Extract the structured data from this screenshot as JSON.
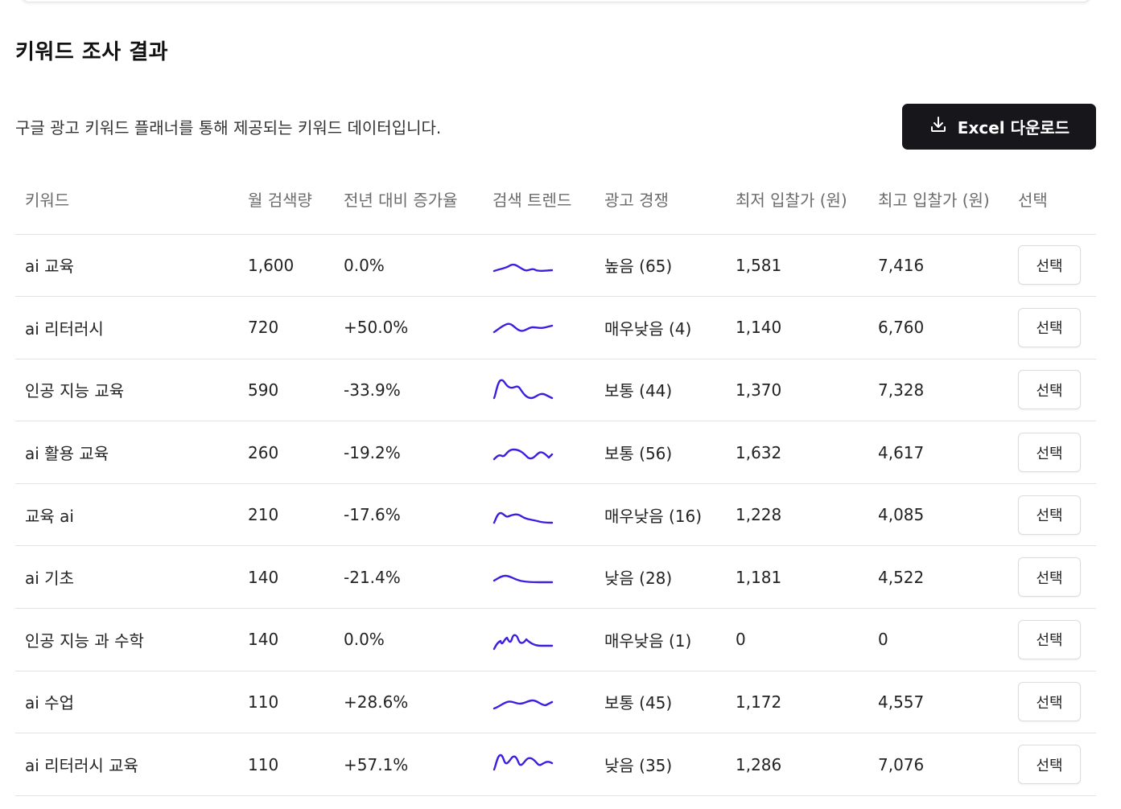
{
  "section": {
    "title": "키워드 조사 결과",
    "subtitle": "구글 광고 키워드 플래너를 통해 제공되는 키워드 데이터입니다.",
    "excel_button": "Excel 다운로드"
  },
  "table": {
    "headers": {
      "keyword": "키워드",
      "volume": "월 검색량",
      "yoy": "전년 대비 증가율",
      "trend": "검색 트렌드",
      "competition": "광고 경쟁",
      "low_bid": "최저 입찰가 (원)",
      "high_bid": "최고 입찰가 (원)",
      "select": "선택"
    },
    "rows": [
      {
        "keyword": "ai 교육",
        "volume": "1,600",
        "yoy": "0.0%",
        "trend_icon": "sparkline",
        "competition": "높음 (65)",
        "low_bid": "1,581",
        "high_bid": "7,416",
        "select": "선택"
      },
      {
        "keyword": "ai 리터러시",
        "volume": "720",
        "yoy": "+50.0%",
        "trend_icon": "sparkline",
        "competition": "매우낮음 (4)",
        "low_bid": "1,140",
        "high_bid": "6,760",
        "select": "선택"
      },
      {
        "keyword": "인공 지능 교육",
        "volume": "590",
        "yoy": "-33.9%",
        "trend_icon": "sparkline",
        "competition": "보통 (44)",
        "low_bid": "1,370",
        "high_bid": "7,328",
        "select": "선택"
      },
      {
        "keyword": "ai 활용 교육",
        "volume": "260",
        "yoy": "-19.2%",
        "trend_icon": "sparkline",
        "competition": "보통 (56)",
        "low_bid": "1,632",
        "high_bid": "4,617",
        "select": "선택"
      },
      {
        "keyword": "교육 ai",
        "volume": "210",
        "yoy": "-17.6%",
        "trend_icon": "sparkline",
        "competition": "매우낮음 (16)",
        "low_bid": "1,228",
        "high_bid": "4,085",
        "select": "선택"
      },
      {
        "keyword": "ai 기초",
        "volume": "140",
        "yoy": "-21.4%",
        "trend_icon": "sparkline",
        "competition": "낮음 (28)",
        "low_bid": "1,181",
        "high_bid": "4,522",
        "select": "선택"
      },
      {
        "keyword": "인공 지능 과 수학",
        "volume": "140",
        "yoy": "0.0%",
        "trend_icon": "sparkline",
        "competition": "매우낮음 (1)",
        "low_bid": "0",
        "high_bid": "0",
        "select": "선택"
      },
      {
        "keyword": "ai 수업",
        "volume": "110",
        "yoy": "+28.6%",
        "trend_icon": "sparkline",
        "competition": "보통 (45)",
        "low_bid": "1,172",
        "high_bid": "4,557",
        "select": "선택"
      },
      {
        "keyword": "ai 리터러시 교육",
        "volume": "110",
        "yoy": "+57.1%",
        "trend_icon": "sparkline",
        "competition": "낮음 (35)",
        "low_bid": "1,286",
        "high_bid": "7,076",
        "select": "선택"
      }
    ]
  },
  "colors": {
    "positive": "#2e9a4a",
    "negative": "#d24848",
    "sparkline": "#3b1fe0",
    "button_dark": "#16161b"
  }
}
